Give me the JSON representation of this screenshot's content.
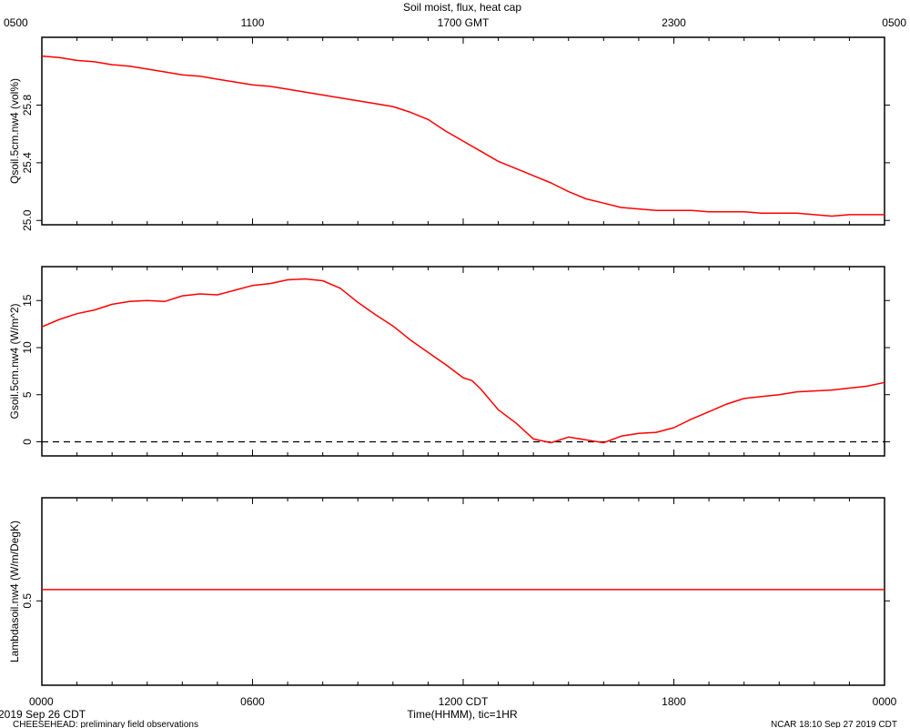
{
  "title": "Soil moist, flux, heat cap",
  "top_axis_ticks": [
    "0500",
    "1100",
    "1700 GMT",
    "2300",
    "0500"
  ],
  "bottom_axis_ticks": [
    "0000",
    "0600",
    "1200 CDT",
    "1800",
    "0000"
  ],
  "xlabel": "Time(HHMM), tic=1HR",
  "date_label": "2019 Sep 26 CDT",
  "footer_left": "CHEESEHEAD: preliminary field observations",
  "footer_right": "NCAR 18:10 Sep 27 2019 CDT",
  "colors": {
    "series": "#ff0000",
    "axis": "#000000",
    "zero_line": "#000000"
  },
  "chart_data": [
    {
      "type": "line",
      "ylabel": "Qsoil.5cm.nw4 (vol%)",
      "ylim": [
        24.97,
        26.27
      ],
      "yticks": [
        25.0,
        25.4,
        25.8
      ],
      "ytick_labels": [
        "25.0",
        "25.4",
        "25.8"
      ],
      "x_unit": "hours since 0000 CDT",
      "x": [
        0,
        0.5,
        1,
        1.5,
        2,
        2.5,
        3,
        3.5,
        4,
        4.5,
        5,
        5.5,
        6,
        6.5,
        7,
        7.5,
        8,
        8.5,
        9,
        9.5,
        10,
        10.5,
        11,
        11.5,
        12,
        12.5,
        13,
        13.5,
        14,
        14.5,
        15,
        15.5,
        16,
        16.5,
        17,
        17.5,
        18,
        18.5,
        19,
        19.5,
        20,
        20.5,
        21,
        21.5,
        22,
        22.5,
        23,
        23.5,
        24
      ],
      "series": [
        {
          "values": [
            26.14,
            26.13,
            26.11,
            26.1,
            26.08,
            26.07,
            26.05,
            26.03,
            26.01,
            26.0,
            25.98,
            25.96,
            25.94,
            25.93,
            25.91,
            25.89,
            25.87,
            25.85,
            25.83,
            25.81,
            25.79,
            25.75,
            25.7,
            25.62,
            25.55,
            25.48,
            25.41,
            25.36,
            25.31,
            25.26,
            25.2,
            25.15,
            25.12,
            25.09,
            25.08,
            25.07,
            25.07,
            25.07,
            25.06,
            25.06,
            25.06,
            25.05,
            25.05,
            25.05,
            25.04,
            25.03,
            25.04,
            25.04,
            25.04
          ]
        }
      ]
    },
    {
      "type": "line",
      "ylabel": "Gsoil.5cm.nw4 (W/m^2)",
      "ylim": [
        -1.5,
        18.6
      ],
      "yticks": [
        0,
        5,
        10,
        15
      ],
      "ytick_labels": [
        "0",
        "5",
        "10",
        "15"
      ],
      "zero_line": true,
      "x": [
        0,
        0.5,
        1,
        1.5,
        2,
        2.5,
        3,
        3.5,
        4,
        4.5,
        5,
        5.5,
        6,
        6.5,
        7,
        7.5,
        8,
        8.5,
        9,
        9.5,
        10,
        10.5,
        11,
        11.5,
        12,
        12.25,
        12.5,
        13,
        13.5,
        14,
        14.5,
        15,
        15.5,
        16,
        16.5,
        17,
        17.5,
        18,
        18.5,
        19,
        19.5,
        20,
        20.5,
        21,
        21.5,
        22,
        22.5,
        23,
        23.5,
        24
      ],
      "series": [
        {
          "values": [
            12.2,
            13.0,
            13.6,
            14.0,
            14.6,
            14.9,
            15.0,
            14.9,
            15.5,
            15.7,
            15.6,
            16.1,
            16.6,
            16.8,
            17.2,
            17.3,
            17.1,
            16.3,
            14.8,
            13.5,
            12.3,
            10.8,
            9.5,
            8.2,
            6.8,
            6.5,
            5.6,
            3.4,
            2.0,
            0.3,
            -0.1,
            0.5,
            0.2,
            -0.1,
            0.6,
            0.9,
            1.0,
            1.5,
            2.4,
            3.2,
            4.0,
            4.6,
            4.8,
            5.0,
            5.3,
            5.4,
            5.5,
            5.7,
            5.9,
            6.3
          ]
        }
      ]
    },
    {
      "type": "line",
      "ylabel": "Lambdasoil.nw4 (W/m/DegK)",
      "ylim": [
        0.05,
        1.05
      ],
      "yticks": [
        0.5
      ],
      "ytick_labels": [
        "0.5"
      ],
      "x": [
        0,
        24
      ],
      "series": [
        {
          "values": [
            0.56,
            0.56
          ]
        }
      ]
    }
  ]
}
